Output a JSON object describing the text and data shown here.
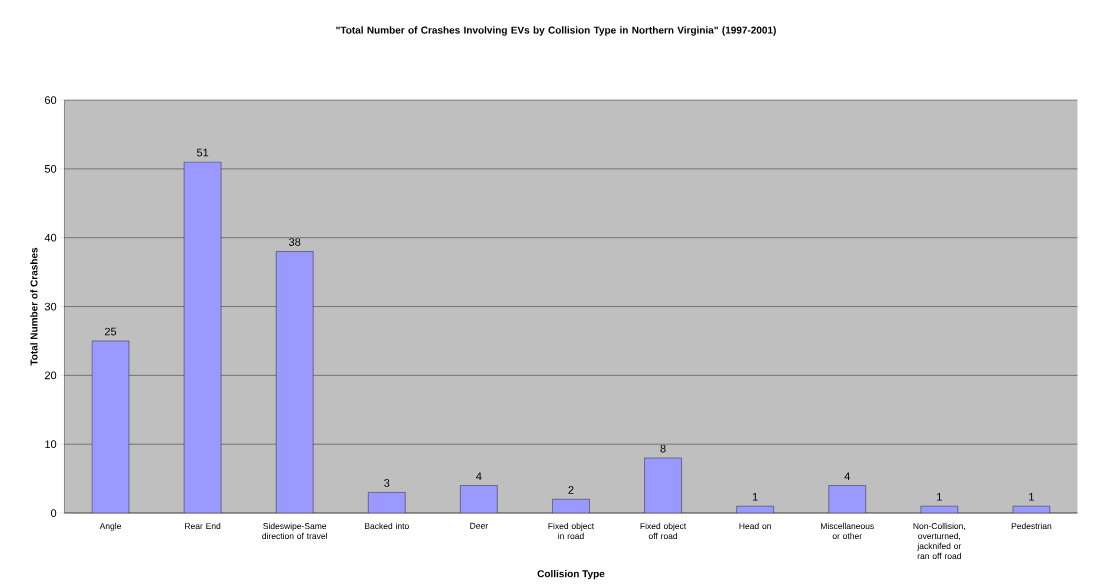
{
  "chart_data": {
    "type": "bar",
    "title": "\"Total Number of Crashes Involving EVs by Collision Type in Northern Virginia\" (1997-2001)",
    "xlabel": "Collision Type",
    "ylabel": "Total Number of Crashes",
    "categories": [
      "Angle",
      "Rear End",
      "Sideswipe-Same direction of travel",
      "Backed into",
      "Deer",
      "Fixed object in road",
      "Fixed object off road",
      "Head on",
      "Miscellaneous or other",
      "Non-Collision, overturned, jacknifed or ran off road",
      "Pedestrian"
    ],
    "values": [
      25,
      51,
      38,
      3,
      4,
      2,
      8,
      1,
      4,
      1,
      1
    ],
    "color": "#9999ff",
    "ylim": [
      0,
      60
    ],
    "yticks": [
      0,
      10,
      20,
      30,
      40,
      50,
      60
    ],
    "grid": "y",
    "data_labels": true
  }
}
